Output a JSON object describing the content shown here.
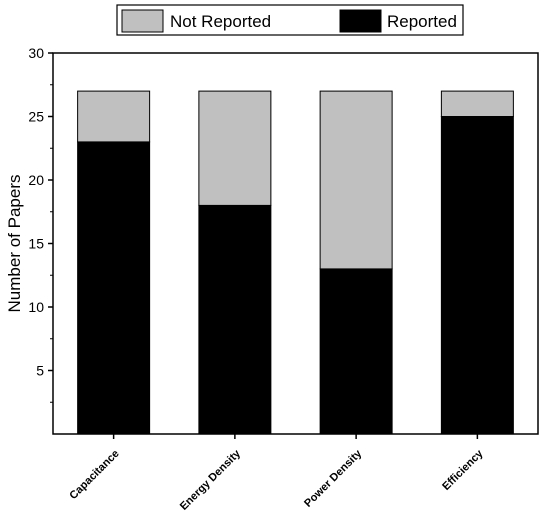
{
  "chart_data": {
    "type": "bar",
    "stacked": true,
    "categories": [
      "Capacitance",
      "Energy Density",
      "Power Density",
      "Efficiency"
    ],
    "series": [
      {
        "name": "Reported",
        "values": [
          23,
          18,
          13,
          25
        ],
        "color": "#000000"
      },
      {
        "name": "Not Reported",
        "values": [
          4,
          9,
          14,
          2
        ],
        "color": "#c0c0c0"
      }
    ],
    "title": "",
    "xlabel": "",
    "ylabel": "Number of Papers",
    "ylim": [
      0,
      30
    ],
    "yticks": [
      5,
      10,
      15,
      20,
      25,
      30
    ],
    "ytick_labels": [
      "5",
      "10",
      "15",
      "20",
      "25",
      "30"
    ],
    "grid": false,
    "legend": {
      "placement": "top",
      "order": [
        "Not Reported",
        "Reported"
      ]
    }
  }
}
